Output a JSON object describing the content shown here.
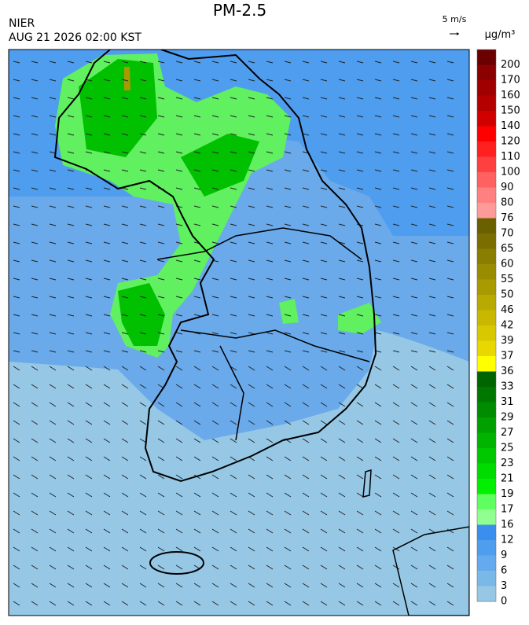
{
  "header": {
    "title": "PM-2.5",
    "agency": "NIER",
    "datetime": "AUG 21 2026 02:00 KST"
  },
  "wind_reference": {
    "label": "5 m/s"
  },
  "legend": {
    "unit": "µg/m³",
    "levels": [
      200,
      170,
      160,
      150,
      140,
      120,
      110,
      100,
      90,
      80,
      76,
      70,
      65,
      60,
      55,
      50,
      46,
      42,
      39,
      37,
      36,
      33,
      31,
      29,
      27,
      25,
      23,
      21,
      19,
      17,
      16,
      12,
      9,
      6,
      3,
      0
    ],
    "colors": [
      "#6a0000",
      "#8b0000",
      "#a00000",
      "#b50000",
      "#d00000",
      "#ff0000",
      "#ff2020",
      "#ff4040",
      "#ff6060",
      "#ff8080",
      "#ff9a9a",
      "#6b6000",
      "#7a6e00",
      "#8a7e00",
      "#998c00",
      "#a89a00",
      "#b8aa00",
      "#c8b800",
      "#d8c800",
      "#e8d800",
      "#ffff00",
      "#006400",
      "#007800",
      "#008c00",
      "#00a000",
      "#00b400",
      "#00c800",
      "#00dc00",
      "#00f000",
      "#60ff60",
      "#90ff90",
      "#3a8fee",
      "#4f9dee",
      "#64aaee",
      "#7ab8e8",
      "#96c8e6"
    ]
  }
}
